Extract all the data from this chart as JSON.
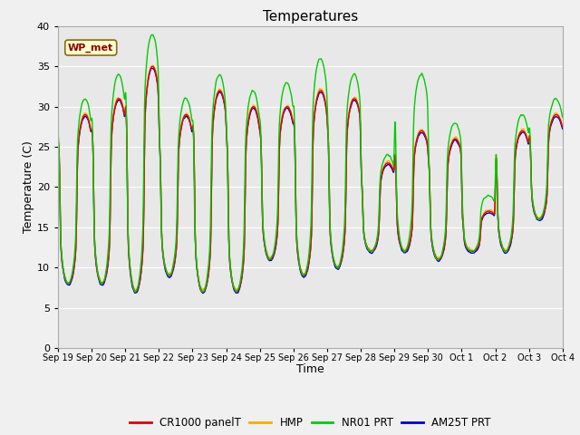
{
  "title": "Temperatures",
  "xlabel": "Time",
  "ylabel": "Temperature (C)",
  "ylim": [
    0,
    40
  ],
  "yticks": [
    0,
    5,
    10,
    15,
    20,
    25,
    30,
    35,
    40
  ],
  "bg_color": "#e8e8e8",
  "fig_color": "#f0f0f0",
  "series_colors": {
    "CR1000 panelT": "#dd0000",
    "HMP": "#ffaa00",
    "NR01 PRT": "#00cc00",
    "AM25T PRT": "#0000cc"
  },
  "series_plot_order": [
    "AM25T PRT",
    "HMP",
    "CR1000 panelT",
    "NR01 PRT"
  ],
  "legend_order": [
    "CR1000 panelT",
    "HMP",
    "NR01 PRT",
    "AM25T PRT"
  ],
  "annotation_text": "WP_met",
  "x_tick_labels": [
    "Sep 19",
    "Sep 20",
    "Sep 21",
    "Sep 22",
    "Sep 23",
    "Sep 24",
    "Sep 25",
    "Sep 26",
    "Sep 27",
    "Sep 28",
    "Sep 29",
    "Sep 30",
    "Oct 1",
    "Oct 2",
    "Oct 3",
    "Oct 4"
  ],
  "line_width": 1.0,
  "daily_max": [
    29,
    31,
    35,
    29,
    32,
    30,
    30,
    32,
    31,
    23,
    27,
    26,
    17,
    27,
    29
  ],
  "daily_min": [
    8,
    8,
    7,
    9,
    7,
    7,
    11,
    9,
    10,
    12,
    12,
    11,
    12,
    12,
    16
  ],
  "nr01_extra_max": [
    2,
    3,
    4,
    2,
    2,
    2,
    3,
    4,
    3,
    1,
    7,
    2,
    2,
    2,
    2
  ],
  "n_days": 15,
  "pts_per_day": 144
}
